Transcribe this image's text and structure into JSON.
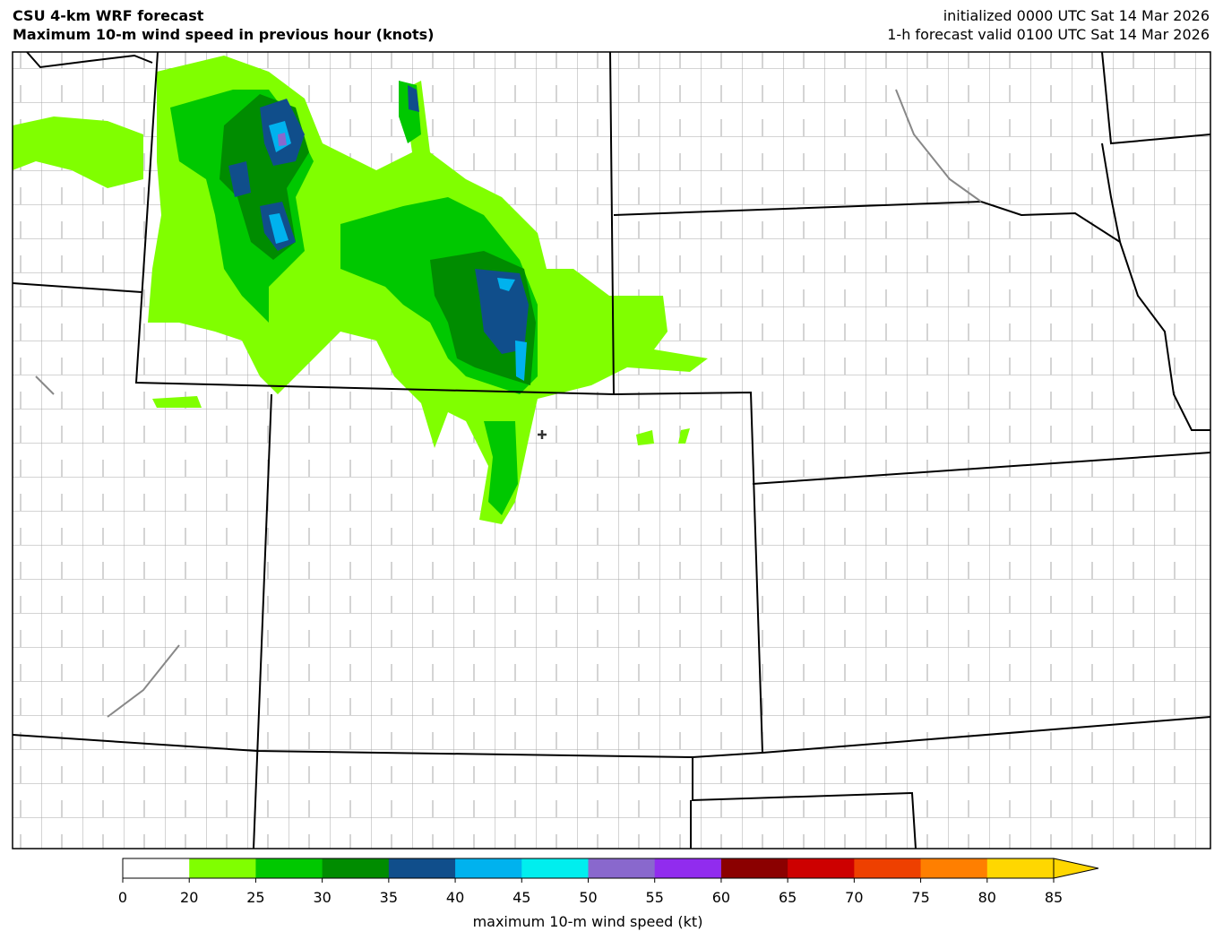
{
  "header": {
    "title_left": [
      "CSU 4-km WRF forecast",
      "Maximum 10-m wind speed in previous hour (knots)"
    ],
    "title_right": [
      "initialized 0000 UTC Sat 14 Mar 2026",
      "1-h forecast valid 0100 UTC Sat 14 Mar 2026"
    ]
  },
  "colorbar": {
    "label": "maximum 10-m wind speed (kt)",
    "ticks": [
      0,
      20,
      25,
      30,
      35,
      40,
      45,
      50,
      55,
      60,
      65,
      70,
      75,
      80,
      85
    ],
    "colors": [
      "#ffffff",
      "#80ff00",
      "#00c800",
      "#008c00",
      "#104e8b",
      "#00b2ee",
      "#00eeee",
      "#8968cd",
      "#912cee",
      "#8b0000",
      "#cd0000",
      "#ee4000",
      "#ff7f00",
      "#ffd700"
    ],
    "extend": "max"
  }
}
